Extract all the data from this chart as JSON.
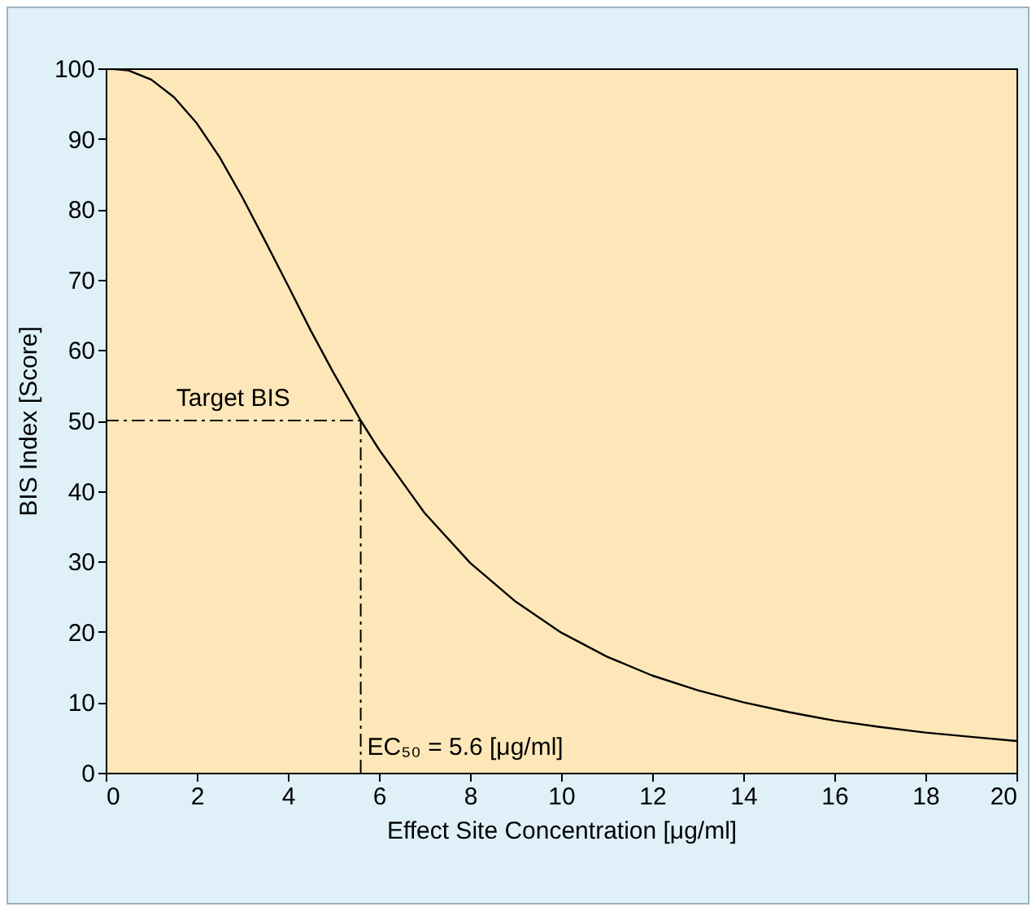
{
  "chart_data": {
    "type": "line",
    "xlabel": "Effect Site Concentration [μg/ml]",
    "ylabel": "BIS Index [Score]",
    "x": [
      0,
      0.5,
      1,
      1.5,
      2,
      2.5,
      3,
      3.5,
      4,
      4.5,
      5,
      5.6,
      6,
      7,
      8,
      9,
      10,
      11,
      12,
      13,
      14,
      15,
      16,
      17,
      18,
      19,
      20
    ],
    "series": [
      {
        "color": "#000000",
        "values": [
          100,
          99.7,
          98.4,
          95.9,
          92.2,
          87.4,
          81.7,
          75.5,
          69.2,
          62.8,
          56.8,
          50,
          45.9,
          36.9,
          29.8,
          24.3,
          19.9,
          16.5,
          13.8,
          11.7,
          10,
          8.6,
          7.4,
          6.5,
          5.7,
          5.1,
          4.5
        ]
      }
    ],
    "xlim": [
      0,
      20
    ],
    "xticks": [
      0,
      2,
      4,
      6,
      8,
      10,
      12,
      14,
      16,
      18,
      20
    ],
    "ylim": [
      0,
      100
    ],
    "yticks": [
      0,
      10,
      20,
      30,
      40,
      50,
      60,
      70,
      80,
      90,
      100
    ],
    "ref_lines": [
      {
        "axis": "y",
        "value": 50,
        "label": "Target BIS",
        "line_style": "dashdot"
      },
      {
        "axis": "x",
        "value": 5.6,
        "label": "EC₅₀ = 5.6 [μg/ml]",
        "line_style": "dashdot"
      }
    ],
    "grid": false,
    "marker": "none",
    "line_style": "solid"
  }
}
